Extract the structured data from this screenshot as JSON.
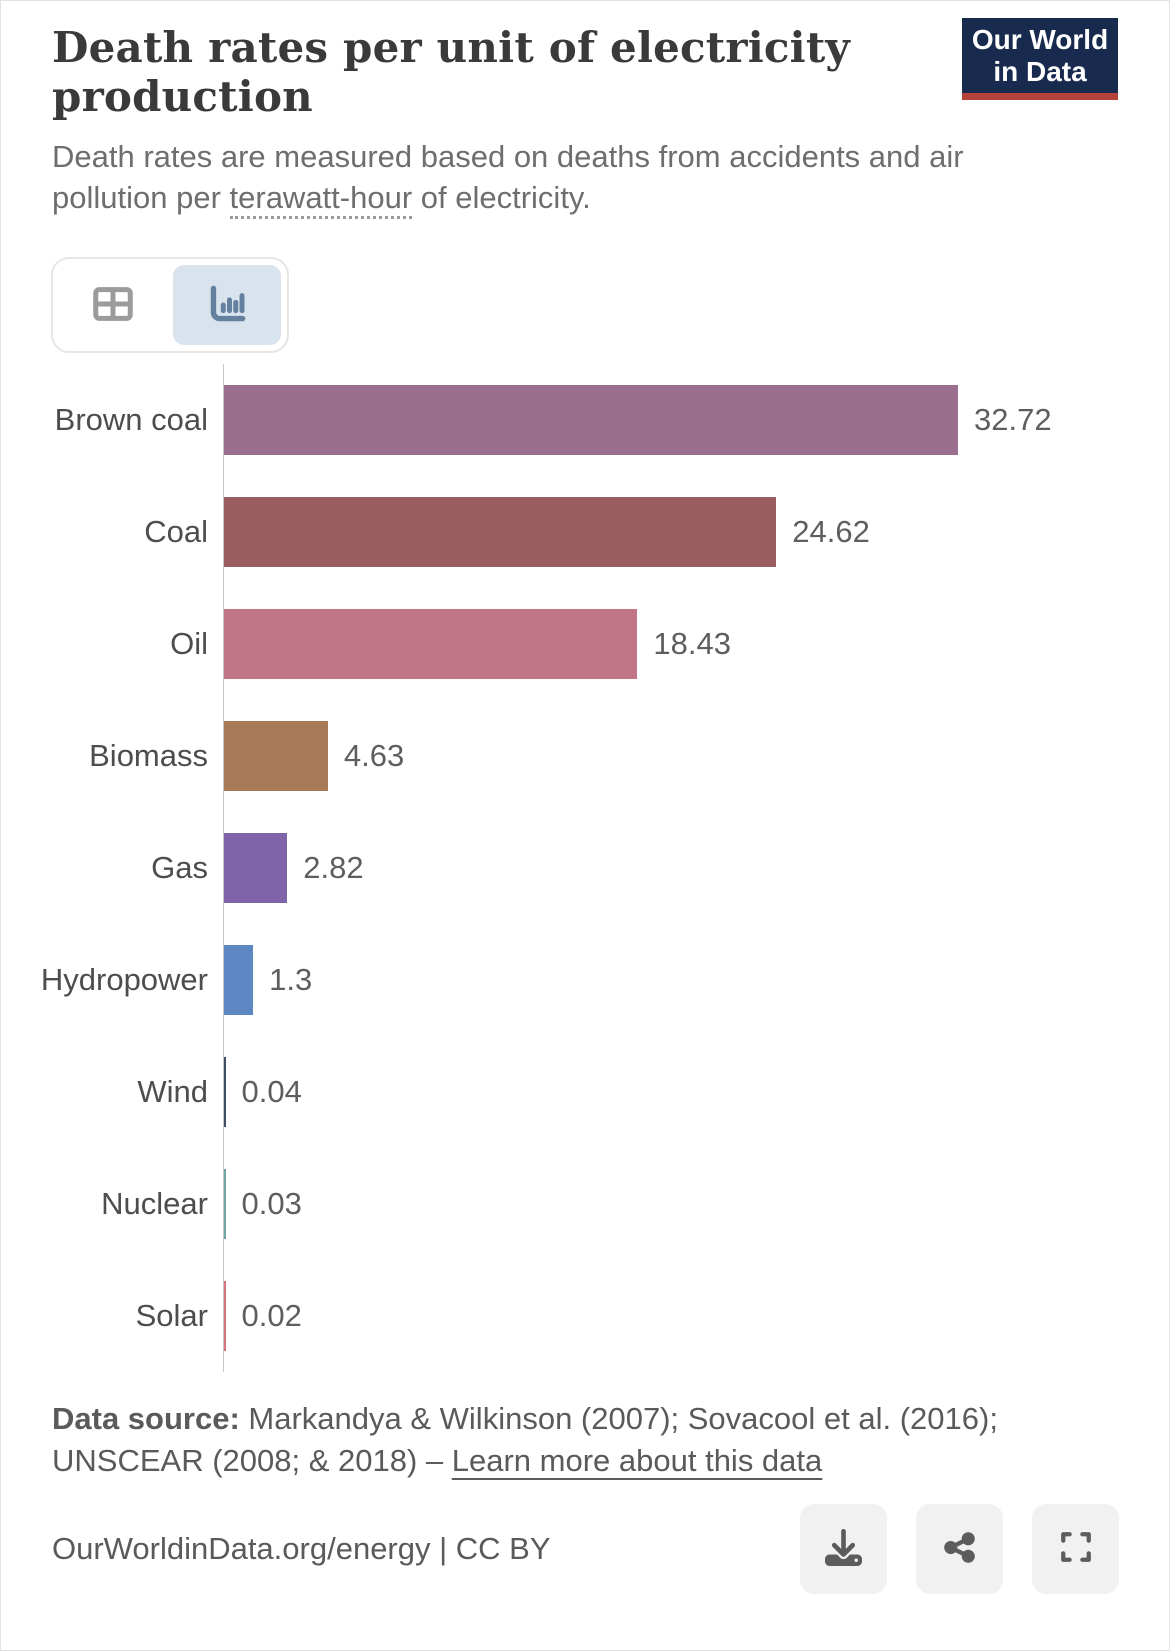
{
  "header": {
    "title": "Death rates per unit of electricity production",
    "subtitle_line1": "Death rates are measured based on deaths from accidents and air",
    "subtitle_line2_pre": "pollution per ",
    "subtitle_term": "terawatt-hour",
    "subtitle_line2_post": " of electricity.",
    "logo_line1": "Our World",
    "logo_line2": "in Data",
    "logo_bg_color": "#182b4e",
    "logo_accent_color": "#b5423a"
  },
  "toolbar": {
    "table_view_icon": "table-icon",
    "chart_view_icon": "bar-chart-icon",
    "active_view": "chart"
  },
  "chart_data": {
    "type": "bar",
    "orientation": "horizontal",
    "title": "Death rates per unit of electricity production",
    "xlabel": "",
    "ylabel": "",
    "xlim": [
      0,
      33.5
    ],
    "grid": false,
    "legend": "none",
    "categories": [
      "Brown coal",
      "Coal",
      "Oil",
      "Biomass",
      "Gas",
      "Hydropower",
      "Wind",
      "Nuclear",
      "Solar"
    ],
    "values": [
      32.72,
      24.62,
      18.43,
      4.63,
      2.82,
      1.3,
      0.04,
      0.03,
      0.02
    ],
    "value_labels": [
      "32.72",
      "24.62",
      "18.43",
      "4.63",
      "2.82",
      "1.3",
      "0.04",
      "0.03",
      "0.02"
    ],
    "bar_colors": [
      "#9a6e8d",
      "#995c5f",
      "#c17687",
      "#a87a58",
      "#7f64aa",
      "#5d87c2",
      "#3d4e66",
      "#6fa8a3",
      "#d7757e"
    ],
    "unit": "deaths per terawatt-hour"
  },
  "footer": {
    "datasource_label": "Data source:",
    "datasource_text": " Markandya & Wilkinson (2007); Sovacool et al. (2016); UNSCEAR (2008; & 2018) – ",
    "learn_more_label": "Learn more about this data",
    "attribution": "OurWorldinData.org/energy | CC BY",
    "download_icon": "download-icon",
    "share_icon": "share-icon",
    "fullscreen_icon": "fullscreen-icon"
  }
}
